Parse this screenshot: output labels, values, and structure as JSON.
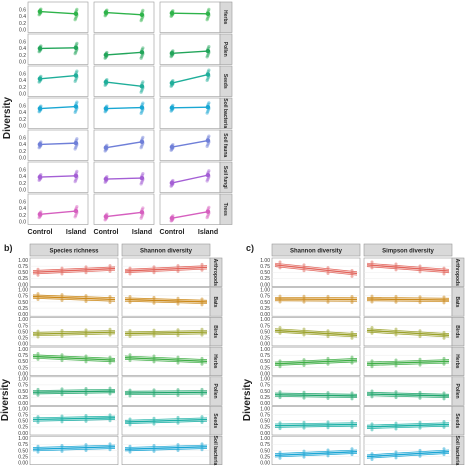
{
  "panel_a": {
    "ylabel": "Diversity",
    "x_categories": [
      "Control",
      "Island"
    ],
    "y_ticks": [
      "0.0",
      "0.2",
      "0.4",
      "0.6"
    ],
    "facets": [
      {
        "label": "Herbs",
        "color": "#2eb34a",
        "segments": [
          [
            0.55,
            0.48
          ],
          [
            0.52,
            0.45
          ],
          [
            0.5,
            0.48
          ]
        ]
      },
      {
        "label": "Pollen",
        "color": "#22a55a",
        "segments": [
          [
            0.4,
            0.42
          ],
          [
            0.2,
            0.28
          ],
          [
            0.25,
            0.32
          ]
        ]
      },
      {
        "label": "Seeds",
        "color": "#1fae9a",
        "segments": [
          [
            0.45,
            0.55
          ],
          [
            0.35,
            0.22
          ],
          [
            0.32,
            0.58
          ]
        ]
      },
      {
        "label": "Soil bacteria",
        "color": "#19a7d3",
        "segments": [
          [
            0.52,
            0.58
          ],
          [
            0.52,
            0.55
          ],
          [
            0.54,
            0.56
          ]
        ]
      },
      {
        "label": "Soil fauna",
        "color": "#6f7fd8",
        "segments": [
          [
            0.4,
            0.44
          ],
          [
            0.3,
            0.48
          ],
          [
            0.32,
            0.52
          ]
        ]
      },
      {
        "label": "Soil fungi",
        "color": "#a45fd5",
        "segments": [
          [
            0.38,
            0.42
          ],
          [
            0.32,
            0.35
          ],
          [
            0.2,
            0.44
          ]
        ]
      },
      {
        "label": "Trees",
        "color": "#d65fbf",
        "segments": [
          [
            0.22,
            0.32
          ],
          [
            0.15,
            0.28
          ],
          [
            0.1,
            0.3
          ]
        ]
      }
    ]
  },
  "panel_b": {
    "letter": "b)",
    "columns": [
      "Species richness",
      "Shannon diversity"
    ]
  },
  "panel_c": {
    "letter": "c)",
    "columns": [
      "Shannon diversity",
      "Simpson diversity"
    ]
  },
  "bc_ylabel": "Diversity",
  "bc_y_ticks": [
    "0.00",
    "0.25",
    "0.50",
    "0.75",
    "1.00"
  ],
  "bc_rows": [
    {
      "label": "Arthropods",
      "color": "#e2655c",
      "b": [
        [
          0.5,
          0.65
        ],
        [
          0.55,
          0.7
        ]
      ],
      "c": [
        [
          0.8,
          0.45
        ],
        [
          0.8,
          0.55
        ]
      ]
    },
    {
      "label": "Bats",
      "color": "#cc8a1b",
      "b": [
        [
          0.72,
          0.6
        ],
        [
          0.6,
          0.5
        ]
      ],
      "c": [
        [
          0.62,
          0.6
        ],
        [
          0.62,
          0.58
        ]
      ]
    },
    {
      "label": "Birds",
      "color": "#9aa12a",
      "b": [
        [
          0.4,
          0.48
        ],
        [
          0.42,
          0.48
        ]
      ],
      "c": [
        [
          0.55,
          0.35
        ],
        [
          0.55,
          0.35
        ]
      ]
    },
    {
      "label": "Herbs",
      "color": "#3fae46",
      "b": [
        [
          0.7,
          0.55
        ],
        [
          0.65,
          0.5
        ]
      ],
      "c": [
        [
          0.4,
          0.55
        ],
        [
          0.4,
          0.5
        ]
      ]
    },
    {
      "label": "Pollen",
      "color": "#1fa56c",
      "b": [
        [
          0.45,
          0.5
        ],
        [
          0.42,
          0.45
        ]
      ],
      "c": [
        [
          0.35,
          0.3
        ],
        [
          0.38,
          0.3
        ]
      ]
    },
    {
      "label": "Seeds",
      "color": "#1cb0a6",
      "b": [
        [
          0.55,
          0.62
        ],
        [
          0.45,
          0.55
        ]
      ],
      "c": [
        [
          0.3,
          0.35
        ],
        [
          0.25,
          0.35
        ]
      ]
    },
    {
      "label": "Soil bacteria",
      "color": "#1aa5d4",
      "b": [
        [
          0.55,
          0.65
        ],
        [
          0.55,
          0.65
        ]
      ],
      "c": [
        [
          0.3,
          0.45
        ],
        [
          0.25,
          0.45
        ]
      ]
    }
  ],
  "chart_data": [
    {
      "type": "scatter",
      "title": "",
      "ylabel": "Diversity",
      "categories": [
        "Control",
        "Island"
      ],
      "ylim": [
        0,
        0.75
      ],
      "facets": [
        "Herbs",
        "Pollen",
        "Seeds",
        "Soil bacteria",
        "Soil fauna",
        "Soil fungi",
        "Trees"
      ]
    },
    {
      "type": "line",
      "title": "",
      "columns": [
        "Species richness",
        "Shannon diversity"
      ],
      "ylim": [
        0,
        1
      ],
      "facets": [
        "Arthropods",
        "Bats",
        "Birds",
        "Herbs",
        "Pollen",
        "Seeds",
        "Soil bacteria"
      ]
    },
    {
      "type": "line",
      "title": "",
      "columns": [
        "Shannon diversity",
        "Simpson diversity"
      ],
      "ylim": [
        0,
        1
      ],
      "facets": [
        "Arthropods",
        "Bats",
        "Birds",
        "Herbs",
        "Pollen",
        "Seeds",
        "Soil bacteria"
      ]
    }
  ]
}
